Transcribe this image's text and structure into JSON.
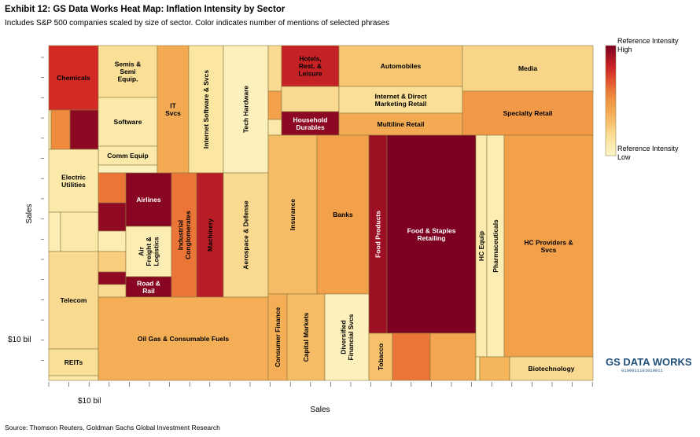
{
  "title": "Exhibit 12: GS Data Works Heat Map: Inflation Intensity by Sector",
  "subtitle": "Includes S&P 500 companies scaled by size of sector. Color indicates number of mentions of selected phrases",
  "source": "Source: Thomson Reuters, Goldman Sachs Global Investment Research",
  "logo": {
    "main": "GS DATA WORKS",
    "sub": "0100011101010011"
  },
  "colors": {
    "high": "#7d0022",
    "mid_high": "#d42a26",
    "mid": "#f08a3c",
    "mid_low": "#f5b55a",
    "low": "#fbe6a2",
    "lowest": "#fdf5c9",
    "border": "#8a7a40"
  },
  "chart_data": {
    "type": "heatmap",
    "title": "Exhibit 12: GS Data Works Heat Map: Inflation Intensity by Sector",
    "xlabel": "Sales",
    "ylabel": "Sales",
    "x_scale_label": "$10 bil",
    "y_scale_label": "$10 bil",
    "legend": {
      "title": "Reference Intensity",
      "high": "High",
      "low": "Low",
      "placement": "right"
    },
    "sectors": [
      {
        "name": "Chemicals",
        "intensity": 0.78
      },
      {
        "name": "Semis & Semi Equip.",
        "intensity": 0.18
      },
      {
        "name": "Software",
        "intensity": 0.12
      },
      {
        "name": "Comm Equip",
        "intensity": 0.12
      },
      {
        "name": "IT Svcs",
        "intensity": 0.4
      },
      {
        "name": "Internet Software & Svcs",
        "intensity": 0.15
      },
      {
        "name": "Tech Hardware",
        "intensity": 0.05
      },
      {
        "name": "Electric Utilities",
        "intensity": 0.12
      },
      {
        "name": "Telecom",
        "intensity": 0.2
      },
      {
        "name": "REITs",
        "intensity": 0.18
      },
      {
        "name": "Airlines",
        "intensity": 0.97
      },
      {
        "name": "Air Freight & Logistics",
        "intensity": 0.08
      },
      {
        "name": "Road & Rail",
        "intensity": 0.97
      },
      {
        "name": "Industrial Conglomerates",
        "intensity": 0.6
      },
      {
        "name": "Machinery",
        "intensity": 0.85
      },
      {
        "name": "Aerospace & Defense",
        "intensity": 0.2
      },
      {
        "name": "Oil Gas & Consumable Fuels",
        "intensity": 0.38
      },
      {
        "name": "Hotels, Rest. & Leisure",
        "intensity": 0.82
      },
      {
        "name": "Household Durables",
        "intensity": 0.96
      },
      {
        "name": "Automobiles",
        "intensity": 0.28
      },
      {
        "name": "Internet & Direct Marketing Retail",
        "intensity": 0.18
      },
      {
        "name": "Multiline Retail",
        "intensity": 0.4
      },
      {
        "name": "Media",
        "intensity": 0.22
      },
      {
        "name": "Specialty Retail",
        "intensity": 0.48
      },
      {
        "name": "Insurance",
        "intensity": 0.32
      },
      {
        "name": "Banks",
        "intensity": 0.45
      },
      {
        "name": "Consumer Finance",
        "intensity": 0.38
      },
      {
        "name": "Capital Markets",
        "intensity": 0.32
      },
      {
        "name": "Diversified Financial Svcs",
        "intensity": 0.05
      },
      {
        "name": "Food Products",
        "intensity": 0.92
      },
      {
        "name": "Food & Staples Retailing",
        "intensity": 1.0
      },
      {
        "name": "Tobacco",
        "intensity": 0.3
      },
      {
        "name": "HC Equip",
        "intensity": 0.1
      },
      {
        "name": "Pharmaceuticals",
        "intensity": 0.08
      },
      {
        "name": "HC Providers & Svcs",
        "intensity": 0.45
      },
      {
        "name": "Biotechnology",
        "intensity": 0.2
      }
    ]
  }
}
